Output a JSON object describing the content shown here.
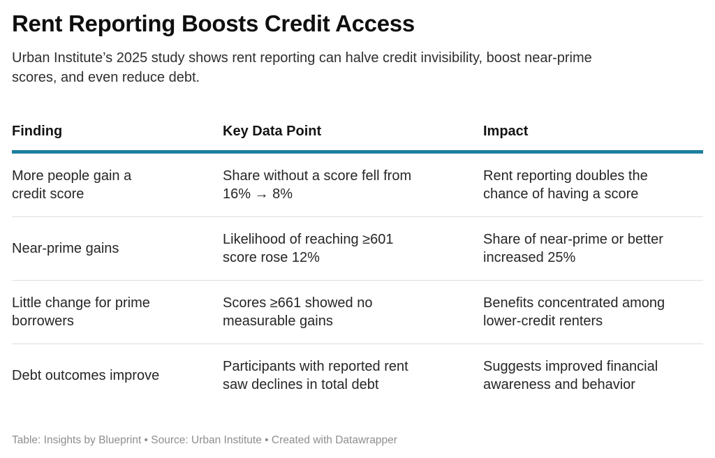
{
  "chart_data": {
    "type": "table",
    "title": "Rent Reporting Boosts Credit Access",
    "subtitle": "Urban Institute’s 2025 study shows rent reporting can halve credit invisibility, boost near-prime\nscores, and even reduce debt.",
    "columns": [
      "Finding",
      "Key Data Point",
      "Impact"
    ],
    "rows": [
      [
        "More people gain a\ncredit score",
        "Share without a score fell from\n16% → 8%",
        "Rent reporting doubles the\nchance of having a score"
      ],
      [
        "Near-prime gains",
        "Likelihood of reaching ≥601\nscore rose 12%",
        "Share of near-prime or better\nincreased 25%"
      ],
      [
        "Little change for prime\nborrowers",
        "Scores ≥661 showed no\nmeasurable gains",
        "Benefits concentrated among\nlower-credit renters"
      ],
      [
        "Debt outcomes improve",
        "Participants with reported rent\nsaw declines in total debt",
        "Suggests improved financial\nawareness and behavior"
      ]
    ],
    "legend_position": "none",
    "grid": "horizontal-row-dividers"
  },
  "styles": {
    "accent_color": "#1d7f9f",
    "divider_color": "#dedede",
    "footer_text_color": "#8e8e8e",
    "background_color": "#ffffff"
  },
  "footer": {
    "table_label": "Table: ",
    "table_credit": "Insights by Blueprint",
    "separator_1": " • ",
    "source_label": "Source: ",
    "source_name": "Urban Institute",
    "separator_2": " • ",
    "created_with_label": "Created with ",
    "created_with_name": "Datawrapper"
  }
}
